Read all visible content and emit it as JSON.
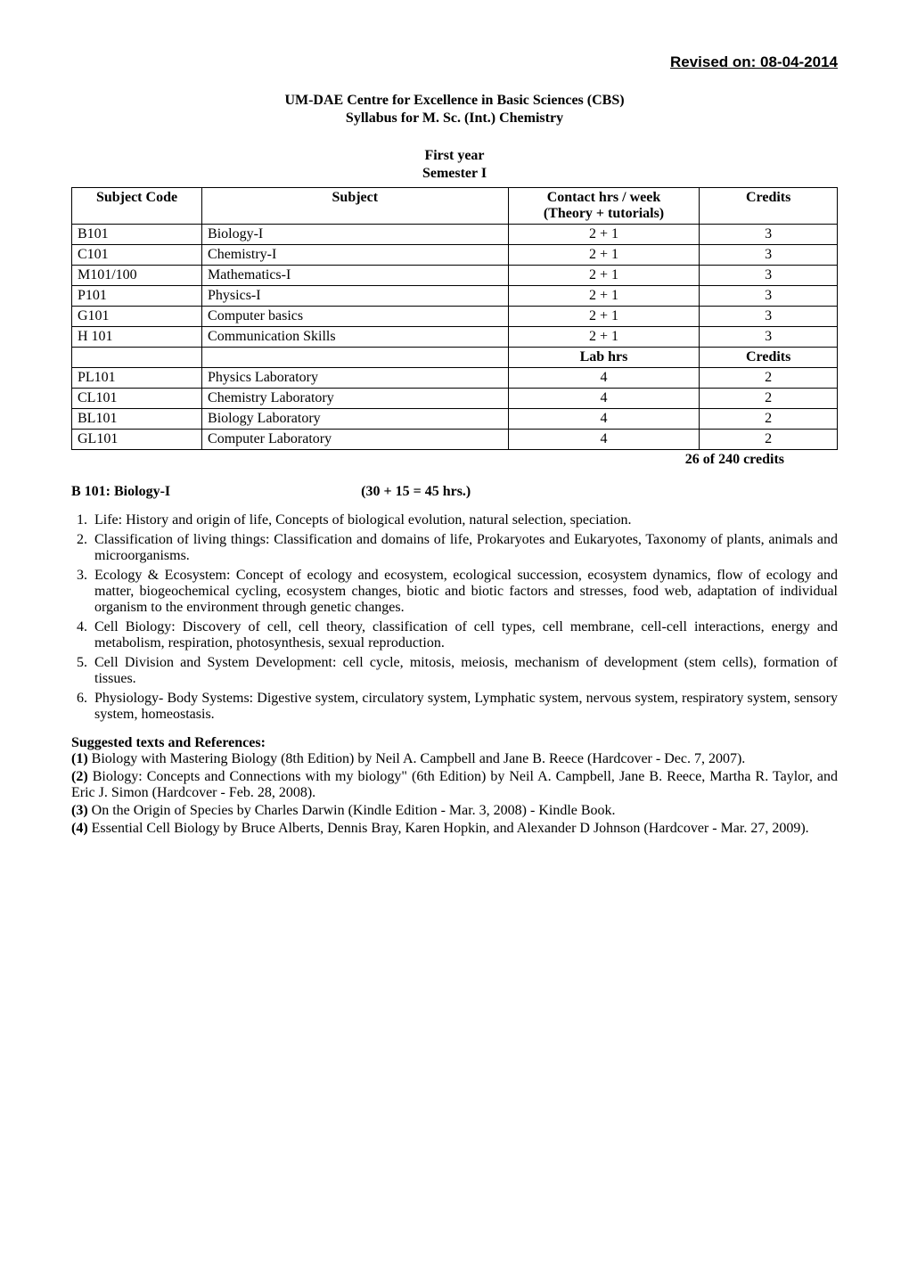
{
  "header": {
    "revised": "Revised on: 08-04-2014",
    "org": "UM-DAE Centre for Excellence in Basic Sciences (CBS)",
    "programme": "Syllabus for M. Sc. (Int.) Chemistry",
    "year": "First year",
    "semester": "Semester I"
  },
  "table": {
    "columns": [
      "Subject Code",
      "Subject",
      "Contact hrs / week (Theory + tutorials)",
      "Credits"
    ],
    "col_hrs_line1": "Contact hrs / week",
    "col_hrs_line2": "(Theory + tutorials)",
    "lab_header_hrs": "Lab hrs",
    "lab_header_credits": "Credits",
    "rows_top": [
      {
        "code": "B101",
        "subject": "Biology-I",
        "hrs": "2 + 1",
        "credits": "3"
      },
      {
        "code": "C101",
        "subject": "Chemistry-I",
        "hrs": "2 + 1",
        "credits": "3"
      },
      {
        "code": "M101/100",
        "subject": "Mathematics-I",
        "hrs": "2 + 1",
        "credits": "3"
      },
      {
        "code": "P101",
        "subject": "Physics-I",
        "hrs": "2 + 1",
        "credits": "3"
      },
      {
        "code": "G101",
        "subject": "Computer basics",
        "hrs": "2 + 1",
        "credits": "3"
      },
      {
        "code": "H 101",
        "subject": "Communication Skills",
        "hrs": "2 + 1",
        "credits": "3"
      }
    ],
    "rows_lab": [
      {
        "code": "PL101",
        "subject": "Physics Laboratory",
        "hrs": "4",
        "credits": "2"
      },
      {
        "code": "CL101",
        "subject": "Chemistry Laboratory",
        "hrs": "4",
        "credits": "2"
      },
      {
        "code": "BL101",
        "subject": "Biology Laboratory",
        "hrs": "4",
        "credits": "2"
      },
      {
        "code": "GL101",
        "subject": "Computer Laboratory",
        "hrs": "4",
        "credits": "2"
      }
    ],
    "total": "26 of 240 credits",
    "style": {
      "border_color": "#000000",
      "background": "#ffffff",
      "header_font_weight": "bold",
      "cell_fontsize": 16,
      "col_widths_pct": [
        17,
        40,
        25,
        18
      ],
      "align": [
        "left",
        "left",
        "center",
        "center"
      ]
    }
  },
  "course": {
    "code_title": "B 101: Biology-I",
    "hours": "(30 + 15 = 45 hrs.)",
    "topics": [
      "Life: History and origin of life, Concepts of biological evolution, natural selection, speciation.",
      "Classification of living things: Classification and domains of life, Prokaryotes and Eukaryotes, Taxonomy of plants, animals and microorganisms.",
      "Ecology & Ecosystem: Concept of ecology and ecosystem, ecological succession, ecosystem dynamics, flow of ecology and matter, biogeochemical cycling, ecosystem changes, biotic and biotic factors and stresses, food web, adaptation of individual organism to the environment through genetic changes.",
      "Cell Biology: Discovery of cell, cell theory, classification of cell types, cell membrane, cell-cell interactions, energy and metabolism, respiration, photosynthesis, sexual reproduction.",
      "Cell Division and System Development: cell cycle, mitosis, meiosis, mechanism of development (stem cells), formation of tissues.",
      "Physiology- Body Systems: Digestive system, circulatory system, Lymphatic system, nervous system, respiratory system, sensory system, homeostasis."
    ]
  },
  "references": {
    "heading": "Suggested texts and References:",
    "items": [
      {
        "num": "(1)",
        "text": " Biology with Mastering Biology (8th Edition) by Neil A. Campbell and Jane B. Reece (Hardcover - Dec. 7, 2007)."
      },
      {
        "num": "(2)",
        "text": " Biology: Concepts and Connections with my biology\" (6th Edition) by Neil A. Campbell, Jane B. Reece, Martha R. Taylor, and Eric J. Simon (Hardcover - Feb. 28, 2008)."
      },
      {
        "num": "(3)",
        "text": " On the Origin of Species by Charles Darwin (Kindle Edition - Mar. 3, 2008) - Kindle Book."
      },
      {
        "num": "(4)",
        "text": " Essential Cell Biology by Bruce Alberts, Dennis Bray, Karen Hopkin, and Alexander D Johnson (Hardcover - Mar. 27, 2009)."
      }
    ]
  },
  "typography": {
    "body_font": "Times New Roman",
    "body_fontsize_pt": 12,
    "revised_font": "Arial",
    "revised_fontsize_pt": 13,
    "text_color": "#000000",
    "background_color": "#ffffff"
  }
}
